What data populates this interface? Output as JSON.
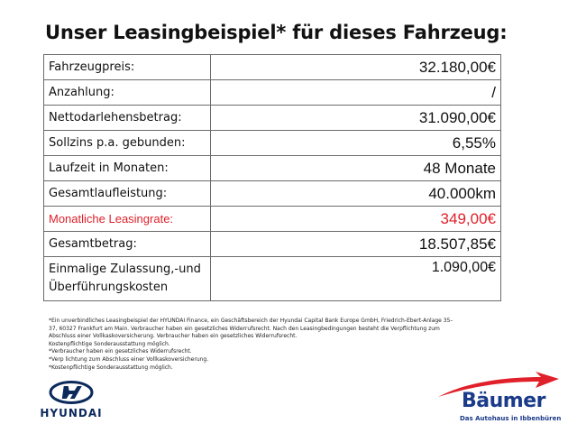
{
  "title": "Unser Leasingbeispiel* für dieses Fahrzeug:",
  "rows": [
    {
      "label": "Fahrzeugpreis:",
      "value": "32.180,00€"
    },
    {
      "label": "Anzahlung:",
      "value": "/"
    },
    {
      "label": "Nettodarlehensbetrag:",
      "value": "31.090,00€"
    },
    {
      "label": "Sollzins p.a. gebunden:",
      "value": "6,55%"
    },
    {
      "label": "Laufzeit in Monaten:",
      "value": "48 Monate"
    },
    {
      "label": "Gesamtlaufleistung:",
      "value": "40.000km"
    },
    {
      "label": "Monatliche Leasingrate:",
      "value": "349,00€"
    },
    {
      "label": "Gesamtbetrag:",
      "value": "18.507,85€"
    },
    {
      "label": "Einmalige Zulassung,-und Überführungskosten",
      "value": "1.090,00€"
    }
  ],
  "footnotes": [
    "*Ein unverbindliches Leasingbeispiel der HYUNDAI Finance, ein Geschäftsbereich der Hyundai Capital Bank Europe GmbH, Friedrich-Ebert-Anlage 35–37, 60327 Frankfurt am Main. Verbraucher haben ein gesetzliches Widerrufsrecht. Nach den Leasingbedingungen besteht die Verpflichtung zum Abschluss einer Vollkaskoversicherung. Verbraucher haben ein gesetzliches Widerrufsrecht.",
    "Kostenpflichtige Sonderausstattung möglich.",
    "*Verbraucher haben ein gesetzliches Widerrufsrecht.",
    "*Verp lichtung zum Abschluss einer Vollkaskoversicherung.",
    "*Kostenpflichtige Sonderausstattung möglich."
  ],
  "logos": {
    "hyundai": {
      "text": "HYUNDAI",
      "color": "#0b2a5b"
    },
    "baumer": {
      "name": "Bäumer",
      "tagline": "Das Autohaus in Ibbenbüren",
      "color": "#1a3a8a",
      "accent": "#e0202a"
    }
  },
  "colors": {
    "highlight": "#e0202a",
    "border": "#6b6b6b"
  }
}
